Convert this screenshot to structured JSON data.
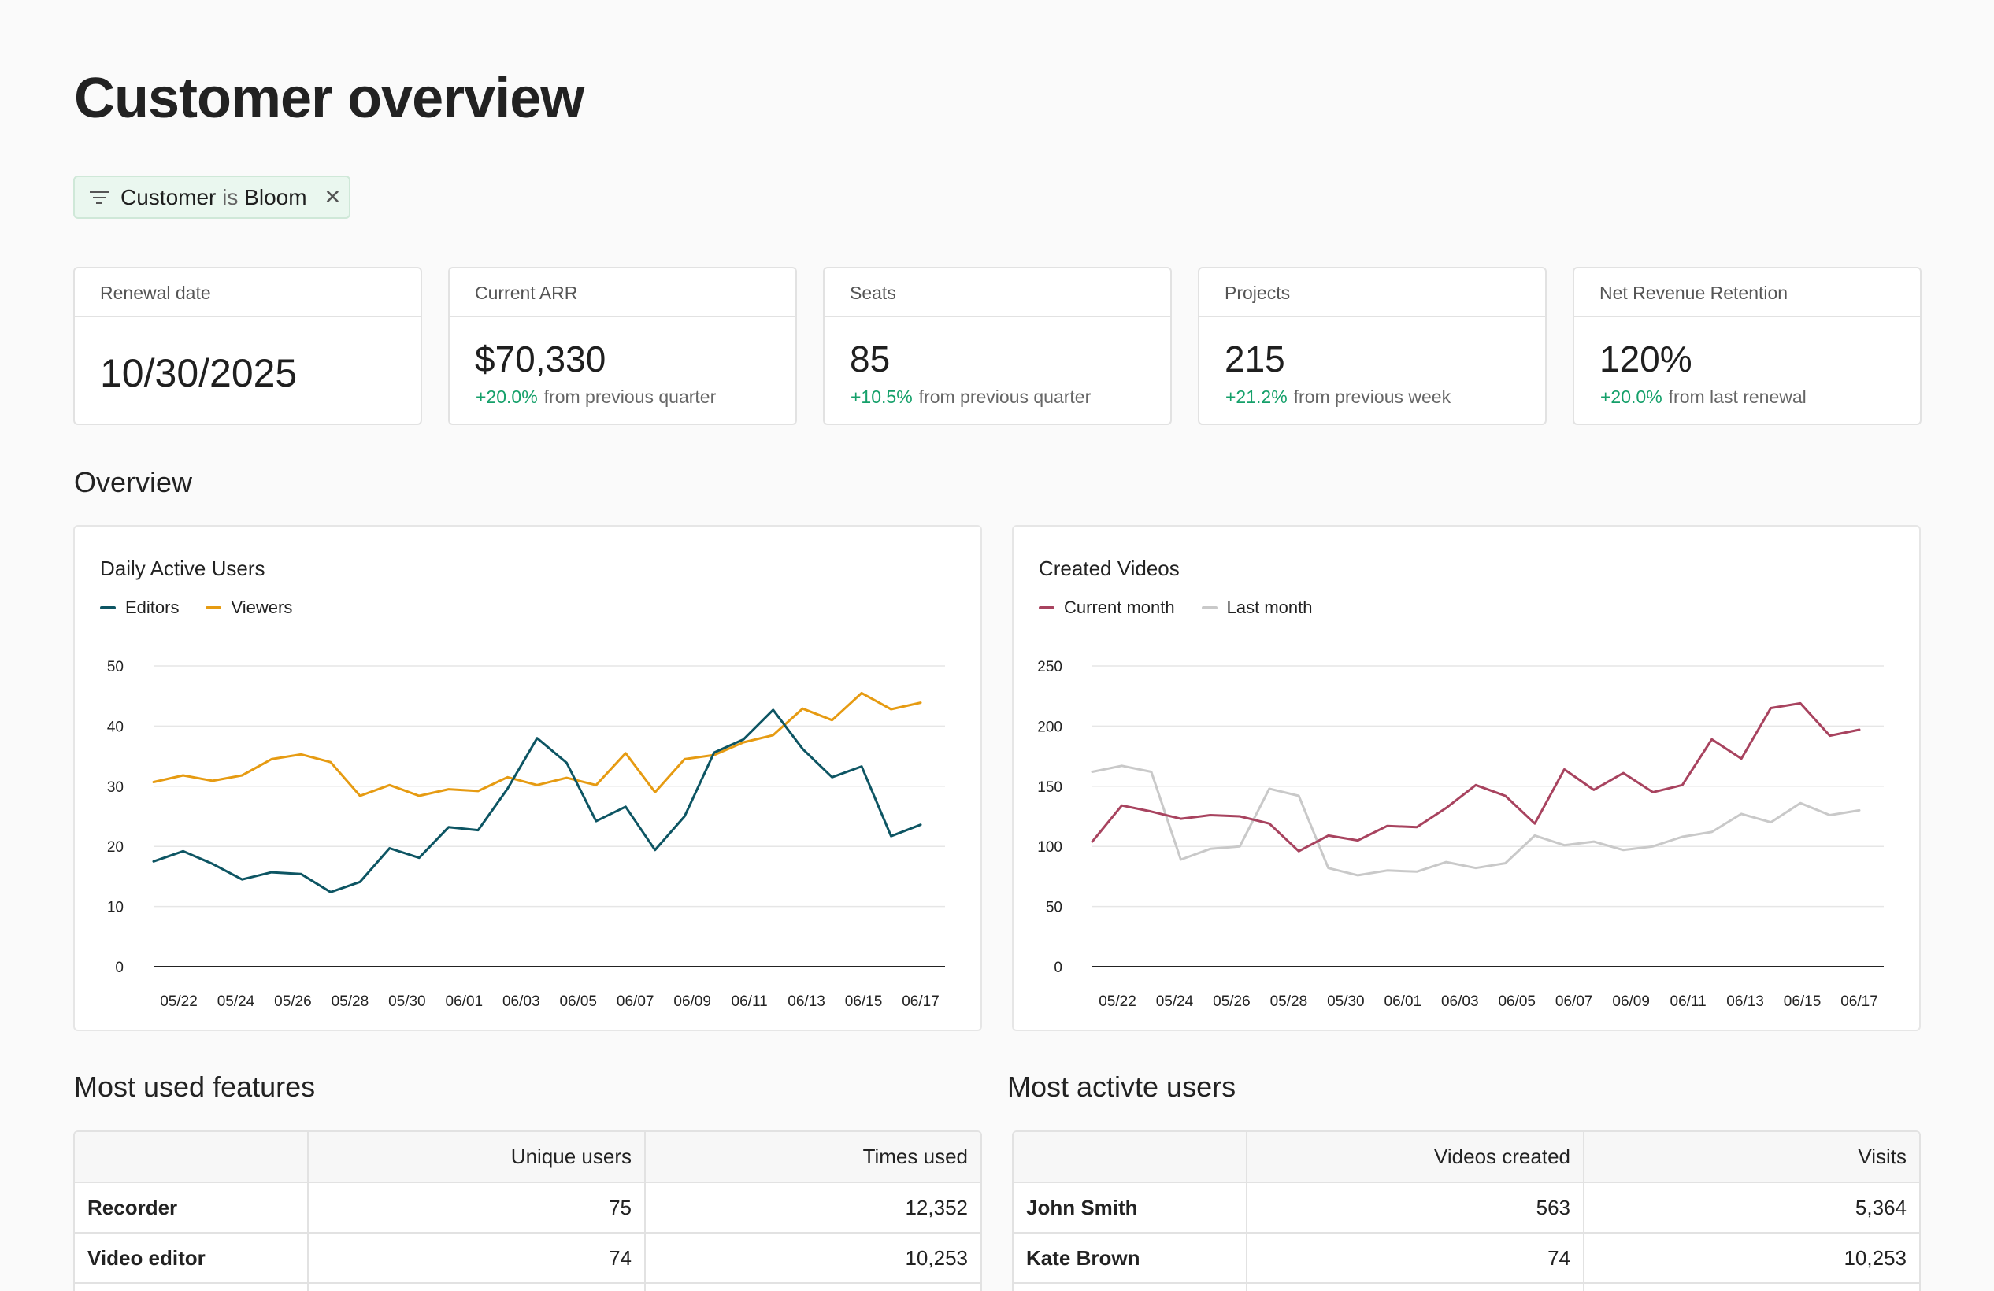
{
  "page": {
    "title": "Customer overview"
  },
  "filter": {
    "field": "Customer",
    "operator": "is",
    "value": "Bloom",
    "close_icon": "close-icon"
  },
  "kpis": [
    {
      "label": "Renewal date",
      "value": "10/30/2025",
      "delta": "",
      "delta_text": ""
    },
    {
      "label": "Current ARR",
      "value": "$70,330",
      "delta": "+20.0%",
      "delta_text": "from previous quarter"
    },
    {
      "label": "Seats",
      "value": "85",
      "delta": "+10.5%",
      "delta_text": "from previous quarter"
    },
    {
      "label": "Projects",
      "value": "215",
      "delta": "+21.2%",
      "delta_text": "from previous week"
    },
    {
      "label": "Net Revenue Retention",
      "value": "120%",
      "delta": "+20.0%",
      "delta_text": "from last renewal"
    }
  ],
  "sections": {
    "overview": "Overview",
    "features": "Most used features",
    "users": "Most activte users"
  },
  "colors": {
    "positive": "#15a06a",
    "editors": "#0d5563",
    "viewers": "#e69b12",
    "current_month": "#a8435f",
    "last_month": "#c9c9c9",
    "chip_bg": "#eaf7ef"
  },
  "chart_data": [
    {
      "type": "line",
      "title": "Daily Active Users",
      "ylim": [
        0,
        50
      ],
      "yticks": [
        0,
        10,
        20,
        30,
        40,
        50
      ],
      "x_tick_labels": [
        "05/22",
        "05/24",
        "05/26",
        "05/28",
        "05/30",
        "06/01",
        "06/03",
        "06/05",
        "06/07",
        "06/09",
        "06/11",
        "06/13",
        "06/15",
        "06/17"
      ],
      "series": [
        {
          "name": "Editors",
          "color": "#0d5563",
          "values": [
            17.5,
            19.2,
            17.1,
            14.5,
            15.7,
            15.4,
            12.4,
            14.1,
            19.7,
            18.1,
            23.2,
            22.7,
            29.6,
            38.0,
            33.9,
            24.2,
            26.6,
            19.4,
            25.0,
            35.6,
            37.8,
            42.7,
            36.2,
            31.5,
            33.3,
            21.7,
            23.6
          ]
        },
        {
          "name": "Viewers",
          "color": "#e69b12",
          "values": [
            30.7,
            31.8,
            30.9,
            31.8,
            34.5,
            35.3,
            34.0,
            28.4,
            30.2,
            28.4,
            29.5,
            29.2,
            31.5,
            30.2,
            31.4,
            30.2,
            35.5,
            29.0,
            34.5,
            35.2,
            37.3,
            38.5,
            42.9,
            41.0,
            45.5,
            42.8,
            43.9
          ]
        }
      ]
    },
    {
      "type": "line",
      "title": "Created Videos",
      "ylim": [
        0,
        250
      ],
      "yticks": [
        0,
        50,
        100,
        150,
        200,
        250
      ],
      "x_tick_labels": [
        "05/22",
        "05/24",
        "05/26",
        "05/28",
        "05/30",
        "06/01",
        "06/03",
        "06/05",
        "06/07",
        "06/09",
        "06/11",
        "06/13",
        "06/15",
        "06/17"
      ],
      "series": [
        {
          "name": "Current month",
          "color": "#a8435f",
          "values": [
            104,
            134,
            129,
            123,
            126,
            125,
            119,
            96,
            109,
            105,
            117,
            116,
            132,
            151,
            142,
            119,
            164,
            147,
            161,
            145,
            151,
            189,
            173,
            215,
            219,
            192,
            197
          ]
        },
        {
          "name": "Last month",
          "color": "#c9c9c9",
          "values": [
            162,
            167,
            162,
            89,
            98,
            100,
            148,
            142,
            82,
            76,
            80,
            79,
            87,
            82,
            86,
            109,
            101,
            104,
            97,
            100,
            108,
            112,
            127,
            120,
            136,
            126,
            130
          ]
        }
      ]
    }
  ],
  "features_table": {
    "headers": [
      "",
      "Unique users",
      "Times used"
    ],
    "rows": [
      {
        "name": "Recorder",
        "c1": "75",
        "c2": "12,352"
      },
      {
        "name": "Video editor",
        "c1": "74",
        "c2": "10,253"
      }
    ]
  },
  "users_table": {
    "headers": [
      "",
      "Videos created",
      "Visits"
    ],
    "rows": [
      {
        "name": "John Smith",
        "c1": "563",
        "c2": "5,364"
      },
      {
        "name": "Kate Brown",
        "c1": "74",
        "c2": "10,253"
      }
    ]
  }
}
